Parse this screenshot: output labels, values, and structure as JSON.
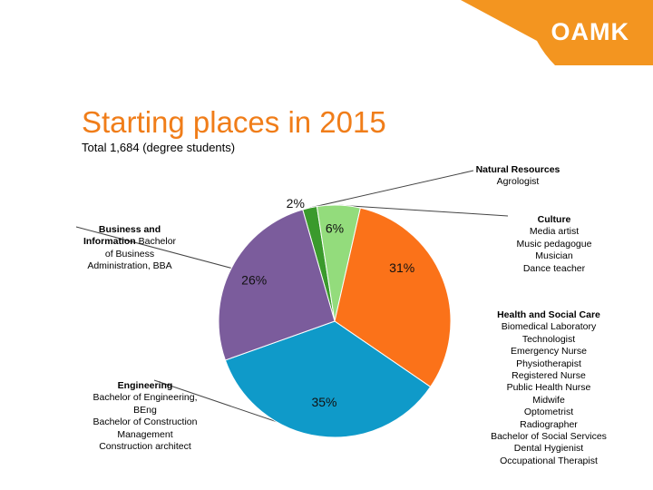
{
  "brand": {
    "logo_text": "OAMK",
    "accent_color": "#f07d19"
  },
  "chart_data": {
    "type": "pie",
    "title": "Starting places in 2015",
    "subtitle": "Total 1,684 (degree students)",
    "slices": [
      {
        "name": "Natural Resources",
        "value": 2,
        "label": "2%",
        "color": "#3a9a2c",
        "details": [
          "Agrologist"
        ]
      },
      {
        "name": "Culture",
        "value": 6,
        "label": "6%",
        "color": "#93dc7c",
        "details": [
          "Media artist",
          "Music pedagogue",
          "Musician",
          "Dance teacher"
        ]
      },
      {
        "name": "Health and Social Care",
        "value": 31,
        "label": "31%",
        "color": "#fb7219",
        "details": [
          "Biomedical Laboratory",
          "Technologist",
          "Emergency Nurse",
          "Physiotherapist",
          "Registered Nurse",
          "Public Health Nurse",
          "Midwife",
          "Optometrist",
          "Radiographer",
          "Bachelor of Social Services",
          "Dental Hygienist",
          "Occupational Therapist"
        ]
      },
      {
        "name": "Engineering",
        "value": 35,
        "label": "35%",
        "color": "#0f9ac9",
        "details": [
          "Bachelor of Engineering,",
          "BEng",
          "Bachelor of Construction",
          "Management",
          "Construction architect"
        ]
      },
      {
        "name": "Business and Information",
        "value": 26,
        "label": "26%",
        "color": "#7b5c9c",
        "details": [
          "Bachelor",
          "of Business",
          "Administration, BBA"
        ]
      }
    ]
  }
}
